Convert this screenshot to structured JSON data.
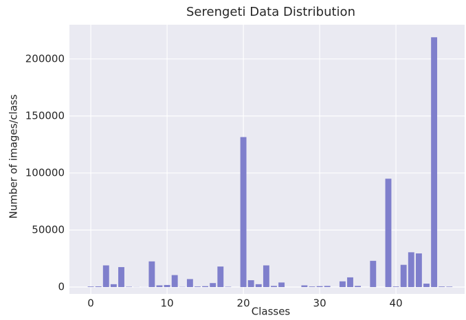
{
  "chart_data": {
    "type": "bar",
    "title": "Serengeti Data Distribution",
    "x_label": "Classes",
    "y_label": "Number of images/class",
    "x": [
      0,
      1,
      2,
      3,
      4,
      5,
      6,
      7,
      8,
      9,
      10,
      11,
      12,
      13,
      14,
      15,
      16,
      17,
      18,
      19,
      20,
      21,
      22,
      23,
      24,
      25,
      26,
      27,
      28,
      29,
      30,
      31,
      32,
      33,
      34,
      35,
      36,
      37,
      38,
      39,
      40,
      41,
      42,
      43,
      44,
      45,
      46,
      47
    ],
    "values": [
      500,
      600,
      19000,
      2500,
      17500,
      300,
      100,
      50,
      22500,
      1500,
      1800,
      10500,
      200,
      7000,
      500,
      800,
      3500,
      18000,
      300,
      0,
      131500,
      6000,
      2500,
      19000,
      1000,
      4000,
      0,
      0,
      1500,
      500,
      800,
      1000,
      0,
      5000,
      8500,
      1000,
      0,
      23000,
      0,
      95000,
      500,
      19500,
      30500,
      29500,
      3000,
      219000,
      500,
      400
    ],
    "color": "#7f7fcc",
    "xlim": [
      -2.8,
      49
    ],
    "xticks": [
      0,
      10,
      20,
      30,
      40
    ],
    "ylim": [
      -6000,
      230000
    ],
    "yticks": [
      0,
      50000,
      100000,
      150000,
      200000
    ],
    "grid": true
  }
}
